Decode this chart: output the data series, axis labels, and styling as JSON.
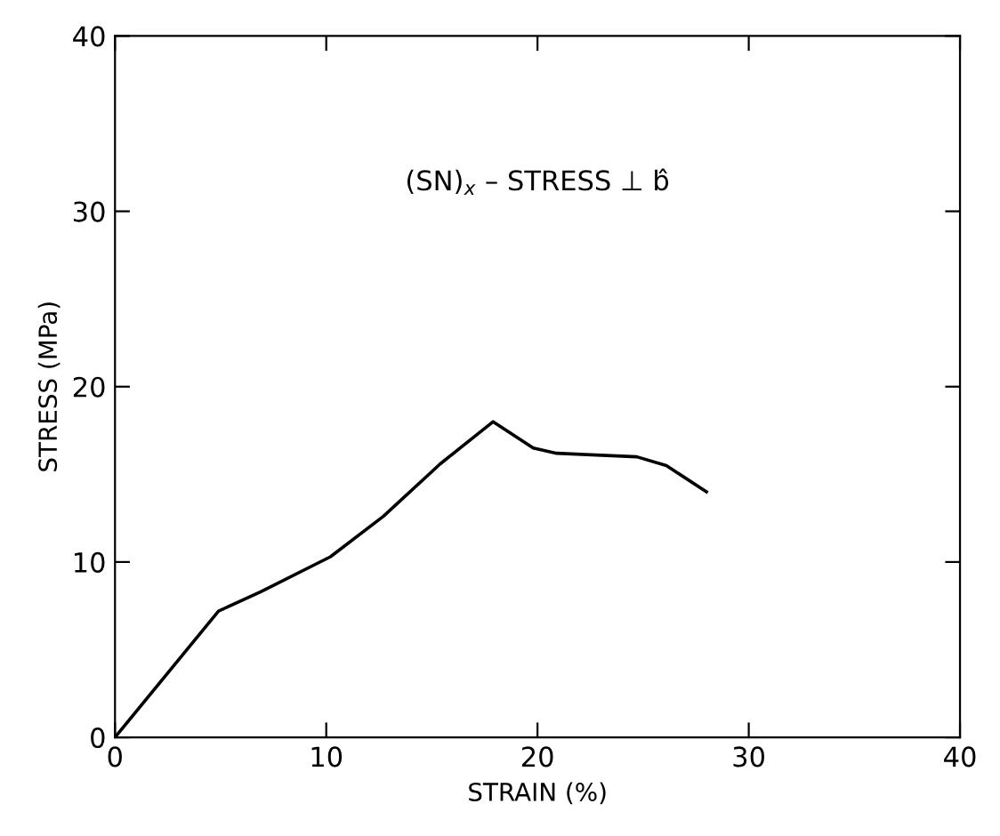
{
  "chart_data": {
    "type": "line",
    "xlabel": "STRAIN (%)",
    "ylabel": "STRESS (MPa)",
    "annotations": [
      "(SN)$_{x}$ – STRESS ⊥ b̂"
    ],
    "x": [
      0,
      4.9,
      6.9,
      10.2,
      12.7,
      15.4,
      17.9,
      19.8,
      20.9,
      24.7,
      26.1,
      28.0
    ],
    "series": [
      {
        "color": "#000000",
        "values": [
          0,
          7.2,
          8.3,
          10.3,
          12.6,
          15.6,
          18.0,
          16.5,
          16.2,
          16.0,
          15.5,
          14.0
        ]
      }
    ],
    "xlim": [
      0,
      40
    ],
    "ylim": [
      0,
      40
    ],
    "xticks": [
      0,
      10,
      20,
      30,
      40
    ],
    "yticks": [
      0,
      10,
      20,
      30,
      40
    ],
    "grid": false,
    "legend": false,
    "marker": "none",
    "line_style": "solid"
  }
}
